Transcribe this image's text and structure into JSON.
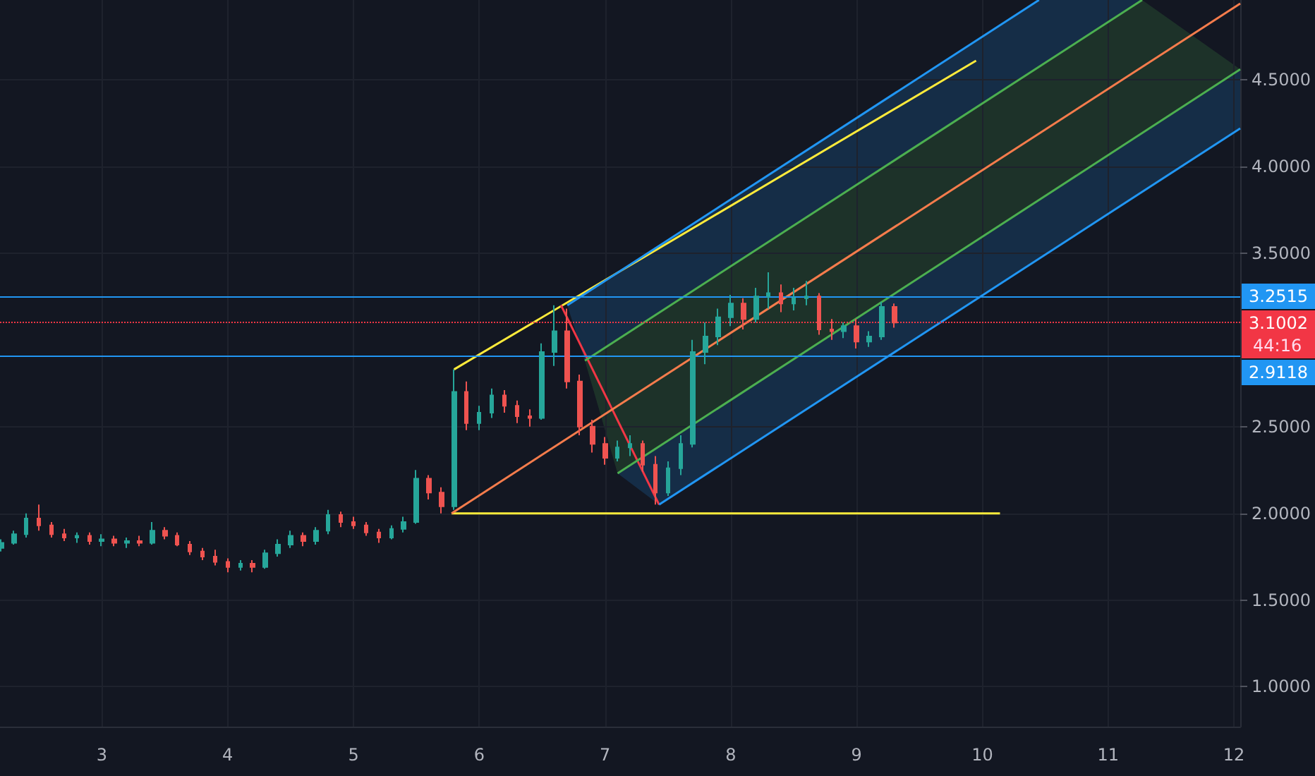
{
  "chart_data": {
    "type": "candlestick",
    "x": [
      2.2,
      2.3,
      2.4,
      2.5,
      2.6,
      2.7,
      2.8,
      2.9,
      3.0,
      3.1,
      3.2,
      3.3,
      3.4,
      3.5,
      3.6,
      3.7,
      3.8,
      3.9,
      4.0,
      4.1,
      4.2,
      4.3,
      4.4,
      4.5,
      4.6,
      4.7,
      4.8,
      4.9,
      5.0,
      5.1,
      5.2,
      5.3,
      5.4,
      5.5,
      5.6,
      5.7,
      5.8,
      5.9,
      6.0,
      6.1,
      6.2,
      6.3,
      6.4,
      6.5,
      6.6,
      6.7,
      6.8,
      6.9,
      7.0,
      7.1,
      7.2,
      7.3,
      7.4,
      7.5,
      7.6,
      7.7,
      7.8,
      7.9,
      8.0,
      8.1,
      8.2,
      8.3,
      8.4,
      8.5,
      8.6,
      8.7,
      8.8,
      8.9,
      9.0,
      9.1,
      9.2,
      9.3
    ],
    "ohlc": [
      [
        1.8,
        1.85,
        1.78,
        1.83
      ],
      [
        1.83,
        1.9,
        1.82,
        1.88
      ],
      [
        1.88,
        2.0,
        1.86,
        1.97
      ],
      [
        1.97,
        2.05,
        1.9,
        1.93
      ],
      [
        1.93,
        1.95,
        1.86,
        1.88
      ],
      [
        1.88,
        1.91,
        1.84,
        1.86
      ],
      [
        1.86,
        1.89,
        1.83,
        1.87
      ],
      [
        1.87,
        1.89,
        1.82,
        1.84
      ],
      [
        1.84,
        1.88,
        1.81,
        1.85
      ],
      [
        1.85,
        1.87,
        1.81,
        1.83
      ],
      [
        1.83,
        1.86,
        1.8,
        1.84
      ],
      [
        1.84,
        1.87,
        1.81,
        1.83
      ],
      [
        1.83,
        1.95,
        1.82,
        1.9
      ],
      [
        1.9,
        1.92,
        1.85,
        1.87
      ],
      [
        1.87,
        1.89,
        1.81,
        1.82
      ],
      [
        1.82,
        1.84,
        1.76,
        1.78
      ],
      [
        1.78,
        1.8,
        1.73,
        1.75
      ],
      [
        1.75,
        1.79,
        1.7,
        1.72
      ],
      [
        1.72,
        1.74,
        1.66,
        1.69
      ],
      [
        1.69,
        1.73,
        1.67,
        1.71
      ],
      [
        1.71,
        1.73,
        1.66,
        1.69
      ],
      [
        1.69,
        1.79,
        1.68,
        1.77
      ],
      [
        1.77,
        1.85,
        1.75,
        1.82
      ],
      [
        1.82,
        1.9,
        1.8,
        1.87
      ],
      [
        1.87,
        1.89,
        1.81,
        1.84
      ],
      [
        1.84,
        1.92,
        1.82,
        1.9
      ],
      [
        1.9,
        2.02,
        1.88,
        1.99
      ],
      [
        1.99,
        2.01,
        1.92,
        1.95
      ],
      [
        1.95,
        1.98,
        1.91,
        1.93
      ],
      [
        1.93,
        1.95,
        1.87,
        1.89
      ],
      [
        1.89,
        1.91,
        1.83,
        1.86
      ],
      [
        1.86,
        1.93,
        1.85,
        1.91
      ],
      [
        1.91,
        1.98,
        1.89,
        1.95
      ],
      [
        1.95,
        2.25,
        1.94,
        2.2
      ],
      [
        2.2,
        2.22,
        2.08,
        2.12
      ],
      [
        2.12,
        2.15,
        2.0,
        2.04
      ],
      [
        2.04,
        2.83,
        2.02,
        2.7
      ],
      [
        2.7,
        2.76,
        2.48,
        2.52
      ],
      [
        2.52,
        2.62,
        2.48,
        2.58
      ],
      [
        2.58,
        2.72,
        2.55,
        2.68
      ],
      [
        2.68,
        2.71,
        2.58,
        2.62
      ],
      [
        2.62,
        2.65,
        2.52,
        2.56
      ],
      [
        2.56,
        2.6,
        2.5,
        2.55
      ],
      [
        2.55,
        2.98,
        2.54,
        2.93
      ],
      [
        2.93,
        3.2,
        2.85,
        3.05
      ],
      [
        3.05,
        3.18,
        2.72,
        2.76
      ],
      [
        2.76,
        2.8,
        2.45,
        2.5
      ],
      [
        2.5,
        2.54,
        2.35,
        2.4
      ],
      [
        2.4,
        2.44,
        2.28,
        2.32
      ],
      [
        2.32,
        2.42,
        2.3,
        2.38
      ],
      [
        2.38,
        2.45,
        2.33,
        2.4
      ],
      [
        2.4,
        2.42,
        2.24,
        2.28
      ],
      [
        2.28,
        2.33,
        2.05,
        2.12
      ],
      [
        2.12,
        2.3,
        2.1,
        2.26
      ],
      [
        2.26,
        2.45,
        2.22,
        2.4
      ],
      [
        2.4,
        3.0,
        2.38,
        2.93
      ],
      [
        2.93,
        3.1,
        2.86,
        3.02
      ],
      [
        3.02,
        3.18,
        2.97,
        3.13
      ],
      [
        3.13,
        3.26,
        3.08,
        3.21
      ],
      [
        3.21,
        3.24,
        3.06,
        3.12
      ],
      [
        3.12,
        3.3,
        3.1,
        3.25
      ],
      [
        3.25,
        3.39,
        3.18,
        3.27
      ],
      [
        3.27,
        3.32,
        3.16,
        3.21
      ],
      [
        3.21,
        3.3,
        3.17,
        3.24
      ],
      [
        3.24,
        3.34,
        3.2,
        3.25
      ],
      [
        3.25,
        3.27,
        3.03,
        3.06
      ],
      [
        3.06,
        3.12,
        3.0,
        3.05
      ],
      [
        3.05,
        3.1,
        3.01,
        3.08
      ],
      [
        3.08,
        3.12,
        2.95,
        2.99
      ],
      [
        2.99,
        3.05,
        2.96,
        3.02
      ],
      [
        3.02,
        3.22,
        3.0,
        3.19
      ],
      [
        3.19,
        3.21,
        3.07,
        3.1
      ]
    ],
    "series": [
      {
        "type": "line",
        "color": "#ffeb3b",
        "x": [
          5.8,
          9.95
        ],
        "values": [
          2.83,
          4.61
        ]
      },
      {
        "type": "line",
        "color": "#ffeb3b",
        "x": [
          5.78,
          10.14
        ],
        "values": [
          2.0,
          2.0
        ]
      },
      {
        "type": "line",
        "color": "#f23645",
        "x": [
          6.65,
          7.43
        ],
        "values": [
          3.2,
          2.05
        ]
      },
      {
        "type": "line",
        "color": "#f57c4c",
        "x": [
          5.78,
          12.05
        ],
        "values": [
          2.0,
          4.94
        ]
      },
      {
        "type": "line",
        "color": "#2196f3",
        "x": [
          6.7,
          10.45
        ],
        "values": [
          3.2,
          4.96
        ]
      },
      {
        "type": "line",
        "color": "#2196f3",
        "x": [
          7.43,
          12.05
        ],
        "values": [
          2.05,
          4.22
        ]
      },
      {
        "type": "line",
        "color": "#4caf50",
        "x": [
          7.1,
          12.05
        ],
        "values": [
          2.23,
          4.56
        ]
      },
      {
        "type": "line",
        "color": "#4caf50",
        "x": [
          6.84,
          11.27
        ],
        "values": [
          2.88,
          4.96
        ]
      }
    ],
    "ref_lines": [
      {
        "axis": "y",
        "value": 3.2515,
        "label": "3.2515",
        "color": "#2196f3",
        "line_style": "solid"
      },
      {
        "axis": "y",
        "value": 2.9118,
        "label": "2.9118",
        "color": "#2196f3",
        "line_style": "solid"
      },
      {
        "axis": "y",
        "value": 3.1002,
        "label": "3.1002",
        "color": "#f23645",
        "line_style": "dotted"
      }
    ],
    "annotations": [
      "44:16"
    ],
    "xlim": [
      2.19,
      12.05
    ],
    "xticks": [
      3,
      4,
      5,
      6,
      7,
      8,
      9,
      10,
      11,
      12
    ],
    "ylim": [
      0.77,
      4.96
    ],
    "yticks": [
      {
        "value": 1,
        "label": "1.0000"
      },
      {
        "value": 1.5,
        "label": "1.5000"
      },
      {
        "value": 2,
        "label": "2.0000"
      },
      {
        "value": 2.5,
        "label": "2.5000"
      },
      {
        "value": 3.5,
        "label": "3.5000"
      },
      {
        "value": 4,
        "label": "4.0000"
      },
      {
        "value": 4.5,
        "label": "4.5000"
      }
    ],
    "grid": true,
    "marker": "none",
    "line_style": "solid"
  }
}
